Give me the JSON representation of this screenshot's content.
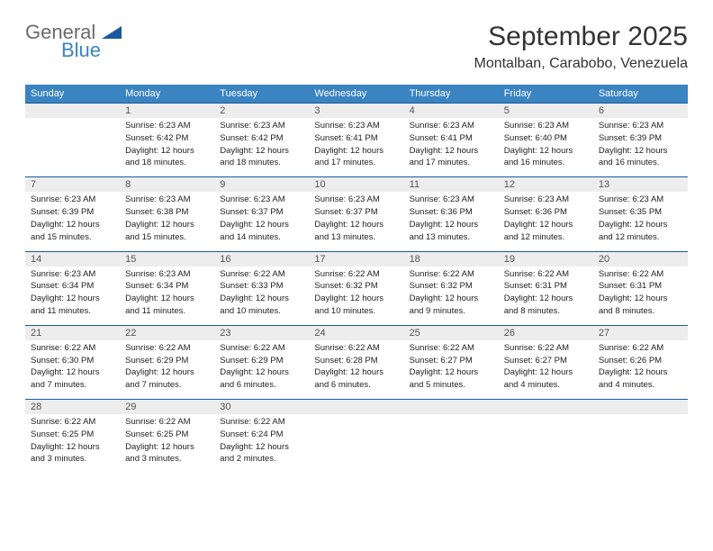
{
  "logo": {
    "text1": "General",
    "text2": "Blue"
  },
  "title": "September 2025",
  "location": "Montalban, Carabobo, Venezuela",
  "day_headers": [
    "Sunday",
    "Monday",
    "Tuesday",
    "Wednesday",
    "Thursday",
    "Friday",
    "Saturday"
  ],
  "colors": {
    "header_bg": "#3b84c2",
    "header_text": "#ffffff",
    "daynum_bg": "#ededed",
    "border": "#1a5a9e"
  },
  "weeks": [
    {
      "nums": [
        "",
        "1",
        "2",
        "3",
        "4",
        "5",
        "6"
      ],
      "cells": [
        null,
        {
          "sunrise": "Sunrise: 6:23 AM",
          "sunset": "Sunset: 6:42 PM",
          "day1": "Daylight: 12 hours",
          "day2": "and 18 minutes."
        },
        {
          "sunrise": "Sunrise: 6:23 AM",
          "sunset": "Sunset: 6:42 PM",
          "day1": "Daylight: 12 hours",
          "day2": "and 18 minutes."
        },
        {
          "sunrise": "Sunrise: 6:23 AM",
          "sunset": "Sunset: 6:41 PM",
          "day1": "Daylight: 12 hours",
          "day2": "and 17 minutes."
        },
        {
          "sunrise": "Sunrise: 6:23 AM",
          "sunset": "Sunset: 6:41 PM",
          "day1": "Daylight: 12 hours",
          "day2": "and 17 minutes."
        },
        {
          "sunrise": "Sunrise: 6:23 AM",
          "sunset": "Sunset: 6:40 PM",
          "day1": "Daylight: 12 hours",
          "day2": "and 16 minutes."
        },
        {
          "sunrise": "Sunrise: 6:23 AM",
          "sunset": "Sunset: 6:39 PM",
          "day1": "Daylight: 12 hours",
          "day2": "and 16 minutes."
        }
      ]
    },
    {
      "nums": [
        "7",
        "8",
        "9",
        "10",
        "11",
        "12",
        "13"
      ],
      "cells": [
        {
          "sunrise": "Sunrise: 6:23 AM",
          "sunset": "Sunset: 6:39 PM",
          "day1": "Daylight: 12 hours",
          "day2": "and 15 minutes."
        },
        {
          "sunrise": "Sunrise: 6:23 AM",
          "sunset": "Sunset: 6:38 PM",
          "day1": "Daylight: 12 hours",
          "day2": "and 15 minutes."
        },
        {
          "sunrise": "Sunrise: 6:23 AM",
          "sunset": "Sunset: 6:37 PM",
          "day1": "Daylight: 12 hours",
          "day2": "and 14 minutes."
        },
        {
          "sunrise": "Sunrise: 6:23 AM",
          "sunset": "Sunset: 6:37 PM",
          "day1": "Daylight: 12 hours",
          "day2": "and 13 minutes."
        },
        {
          "sunrise": "Sunrise: 6:23 AM",
          "sunset": "Sunset: 6:36 PM",
          "day1": "Daylight: 12 hours",
          "day2": "and 13 minutes."
        },
        {
          "sunrise": "Sunrise: 6:23 AM",
          "sunset": "Sunset: 6:36 PM",
          "day1": "Daylight: 12 hours",
          "day2": "and 12 minutes."
        },
        {
          "sunrise": "Sunrise: 6:23 AM",
          "sunset": "Sunset: 6:35 PM",
          "day1": "Daylight: 12 hours",
          "day2": "and 12 minutes."
        }
      ]
    },
    {
      "nums": [
        "14",
        "15",
        "16",
        "17",
        "18",
        "19",
        "20"
      ],
      "cells": [
        {
          "sunrise": "Sunrise: 6:23 AM",
          "sunset": "Sunset: 6:34 PM",
          "day1": "Daylight: 12 hours",
          "day2": "and 11 minutes."
        },
        {
          "sunrise": "Sunrise: 6:23 AM",
          "sunset": "Sunset: 6:34 PM",
          "day1": "Daylight: 12 hours",
          "day2": "and 11 minutes."
        },
        {
          "sunrise": "Sunrise: 6:22 AM",
          "sunset": "Sunset: 6:33 PM",
          "day1": "Daylight: 12 hours",
          "day2": "and 10 minutes."
        },
        {
          "sunrise": "Sunrise: 6:22 AM",
          "sunset": "Sunset: 6:32 PM",
          "day1": "Daylight: 12 hours",
          "day2": "and 10 minutes."
        },
        {
          "sunrise": "Sunrise: 6:22 AM",
          "sunset": "Sunset: 6:32 PM",
          "day1": "Daylight: 12 hours",
          "day2": "and 9 minutes."
        },
        {
          "sunrise": "Sunrise: 6:22 AM",
          "sunset": "Sunset: 6:31 PM",
          "day1": "Daylight: 12 hours",
          "day2": "and 8 minutes."
        },
        {
          "sunrise": "Sunrise: 6:22 AM",
          "sunset": "Sunset: 6:31 PM",
          "day1": "Daylight: 12 hours",
          "day2": "and 8 minutes."
        }
      ]
    },
    {
      "nums": [
        "21",
        "22",
        "23",
        "24",
        "25",
        "26",
        "27"
      ],
      "cells": [
        {
          "sunrise": "Sunrise: 6:22 AM",
          "sunset": "Sunset: 6:30 PM",
          "day1": "Daylight: 12 hours",
          "day2": "and 7 minutes."
        },
        {
          "sunrise": "Sunrise: 6:22 AM",
          "sunset": "Sunset: 6:29 PM",
          "day1": "Daylight: 12 hours",
          "day2": "and 7 minutes."
        },
        {
          "sunrise": "Sunrise: 6:22 AM",
          "sunset": "Sunset: 6:29 PM",
          "day1": "Daylight: 12 hours",
          "day2": "and 6 minutes."
        },
        {
          "sunrise": "Sunrise: 6:22 AM",
          "sunset": "Sunset: 6:28 PM",
          "day1": "Daylight: 12 hours",
          "day2": "and 6 minutes."
        },
        {
          "sunrise": "Sunrise: 6:22 AM",
          "sunset": "Sunset: 6:27 PM",
          "day1": "Daylight: 12 hours",
          "day2": "and 5 minutes."
        },
        {
          "sunrise": "Sunrise: 6:22 AM",
          "sunset": "Sunset: 6:27 PM",
          "day1": "Daylight: 12 hours",
          "day2": "and 4 minutes."
        },
        {
          "sunrise": "Sunrise: 6:22 AM",
          "sunset": "Sunset: 6:26 PM",
          "day1": "Daylight: 12 hours",
          "day2": "and 4 minutes."
        }
      ]
    },
    {
      "nums": [
        "28",
        "29",
        "30",
        "",
        "",
        "",
        ""
      ],
      "cells": [
        {
          "sunrise": "Sunrise: 6:22 AM",
          "sunset": "Sunset: 6:25 PM",
          "day1": "Daylight: 12 hours",
          "day2": "and 3 minutes."
        },
        {
          "sunrise": "Sunrise: 6:22 AM",
          "sunset": "Sunset: 6:25 PM",
          "day1": "Daylight: 12 hours",
          "day2": "and 3 minutes."
        },
        {
          "sunrise": "Sunrise: 6:22 AM",
          "sunset": "Sunset: 6:24 PM",
          "day1": "Daylight: 12 hours",
          "day2": "and 2 minutes."
        },
        null,
        null,
        null,
        null
      ]
    }
  ]
}
